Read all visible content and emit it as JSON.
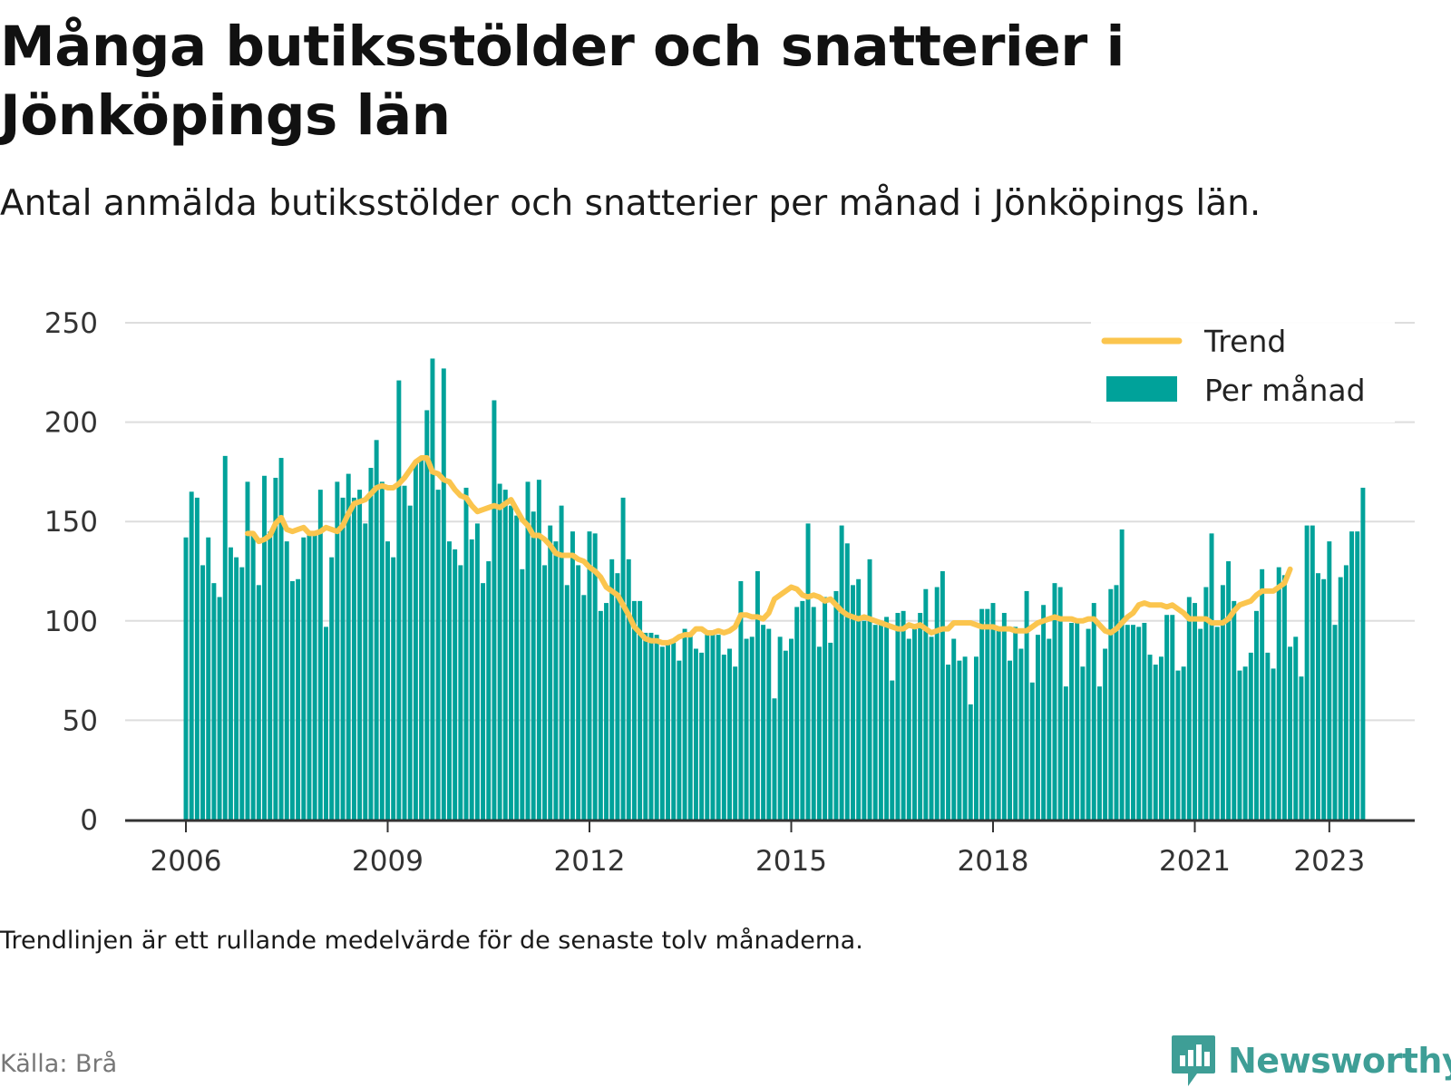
{
  "title": "Många butiksstölder och snatterier i Jönköpings län",
  "subtitle": "Antal anmälda butiksstölder och snatterier per månad i Jönköpings län.",
  "note": "Trendlinjen är ett rullande medelvärde för de senaste tolv månaderna.",
  "source": "Källa: Brå",
  "brand": {
    "name": "Newsworthy",
    "icon": "bar-chart-speech-icon",
    "color": "#3e9e96"
  },
  "colors": {
    "bar": "#00a29a",
    "trend": "#fbc54e",
    "grid": "#dddddd",
    "axis": "#333333"
  },
  "chart_data": {
    "type": "bar",
    "x_start": "2006-01",
    "x_ticks": [
      "2006",
      "2009",
      "2012",
      "2015",
      "2018",
      "2021",
      "2023"
    ],
    "ylim": [
      0,
      250
    ],
    "y_ticks": [
      "0",
      "50",
      "100",
      "150",
      "200",
      "250"
    ],
    "grid": true,
    "legend_position": "top-right",
    "series": [
      {
        "name": "Per månad",
        "type": "bar",
        "values": [
          142,
          165,
          162,
          128,
          142,
          119,
          112,
          183,
          137,
          132,
          127,
          170,
          143,
          118,
          173,
          145,
          172,
          182,
          140,
          120,
          121,
          142,
          143,
          145,
          166,
          97,
          132,
          170,
          162,
          174,
          162,
          166,
          149,
          177,
          191,
          170,
          140,
          132,
          221,
          168,
          158,
          180,
          182,
          206,
          232,
          166,
          227,
          140,
          136,
          128,
          167,
          141,
          149,
          119,
          130,
          211,
          169,
          166,
          158,
          153,
          126,
          170,
          155,
          171,
          128,
          148,
          140,
          158,
          118,
          145,
          128,
          113,
          145,
          144,
          105,
          109,
          131,
          124,
          162,
          131,
          110,
          110,
          94,
          94,
          93,
          87,
          88,
          89,
          80,
          96,
          93,
          86,
          84,
          93,
          93,
          93,
          83,
          86,
          77,
          120,
          91,
          92,
          125,
          98,
          96,
          61,
          92,
          85,
          91,
          107,
          110,
          149,
          107,
          87,
          112,
          89,
          115,
          148,
          139,
          118,
          121,
          100,
          131,
          98,
          100,
          102,
          70,
          104,
          105,
          91,
          96,
          104,
          116,
          92,
          117,
          125,
          78,
          91,
          80,
          82,
          58,
          82,
          106,
          106,
          109,
          96,
          104,
          80,
          97,
          86,
          115,
          69,
          93,
          108,
          91,
          119,
          117,
          67,
          99,
          100,
          77,
          96,
          109,
          67,
          86,
          116,
          118,
          146,
          98,
          98,
          97,
          99,
          83,
          78,
          82,
          103,
          103,
          75,
          77,
          112,
          109,
          96,
          117,
          144,
          97,
          118,
          130,
          110,
          75,
          77,
          84,
          105,
          126,
          84,
          76,
          127,
          123,
          87,
          92,
          72,
          148,
          148,
          124,
          121,
          140,
          98,
          122,
          128,
          145,
          145,
          167
        ],
        "color": "#00a29a"
      },
      {
        "name": "Trend",
        "type": "line",
        "start_index": 11,
        "values": [
          144,
          144,
          140,
          141,
          143,
          149,
          152,
          146,
          145,
          146,
          147,
          144,
          144,
          145,
          147,
          146,
          145,
          148,
          154,
          159,
          160,
          161,
          164,
          167,
          168,
          167,
          167,
          169,
          172,
          176,
          180,
          182,
          182,
          175,
          174,
          171,
          170,
          166,
          163,
          162,
          158,
          155,
          156,
          157,
          158,
          157,
          159,
          161,
          156,
          151,
          148,
          143,
          143,
          141,
          138,
          134,
          133,
          133,
          133,
          131,
          130,
          127,
          125,
          122,
          117,
          115,
          113,
          108,
          103,
          97,
          94,
          91,
          90,
          90,
          89,
          89,
          90,
          92,
          93,
          93,
          96,
          96,
          94,
          94,
          95,
          94,
          95,
          97,
          103,
          103,
          102,
          102,
          101,
          104,
          111,
          113,
          115,
          117,
          116,
          113,
          112,
          113,
          112,
          110,
          111,
          108,
          105,
          103,
          102,
          101,
          102,
          101,
          100,
          99,
          98,
          97,
          96,
          96,
          98,
          97,
          98,
          96,
          94,
          95,
          96,
          96,
          99,
          99,
          99,
          99,
          98,
          97,
          97,
          97,
          96,
          96,
          96,
          95,
          95,
          95,
          97,
          99,
          100,
          101,
          102,
          101,
          101,
          101,
          100,
          100,
          101,
          101,
          98,
          95,
          94,
          96,
          99,
          102,
          104,
          108,
          109,
          108,
          108,
          108,
          107,
          108,
          106,
          104,
          101,
          101,
          101,
          101,
          99,
          99,
          99,
          101,
          105,
          108,
          109,
          110,
          113,
          115,
          115,
          115,
          117,
          119,
          126
        ]
      }
    ]
  }
}
